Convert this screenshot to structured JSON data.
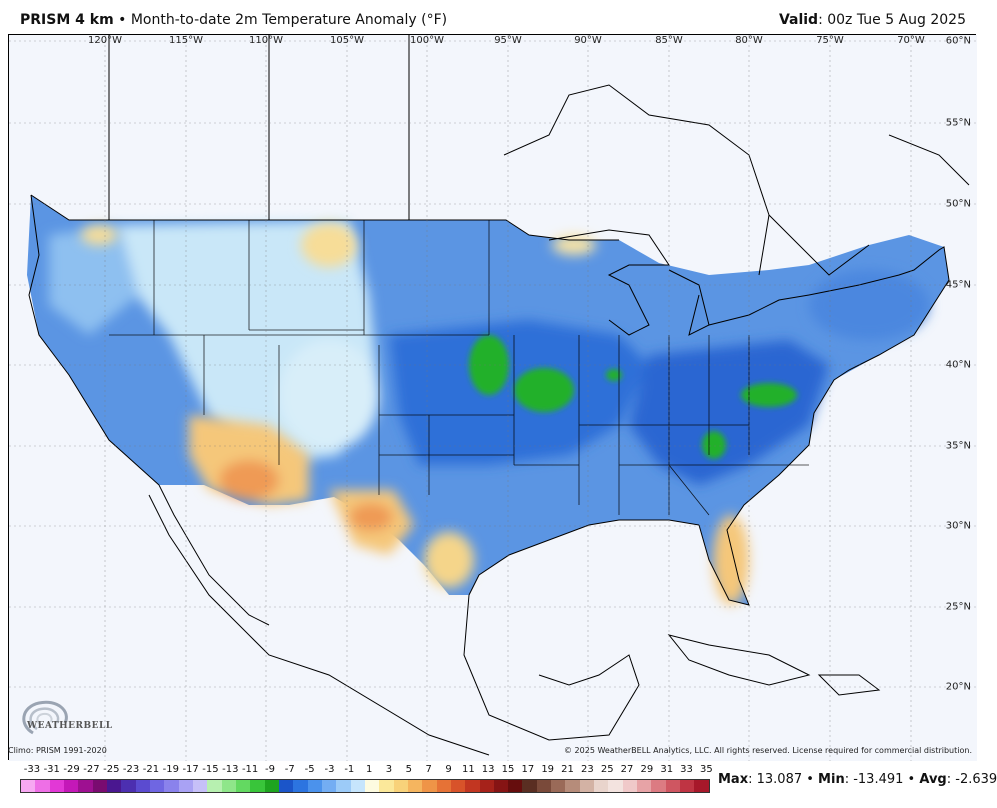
{
  "header": {
    "model": "PRISM 4 km",
    "bullet": "•",
    "description": "Month-to-date 2m Temperature Anomaly (°F)",
    "valid_label": "Valid",
    "valid_value": ": 00z Tue 5 Aug 2025"
  },
  "map": {
    "longitude_labels": [
      "120°W",
      "115°W",
      "110°W",
      "105°W",
      "100°W",
      "95°W",
      "90°W",
      "85°W",
      "80°W",
      "75°W",
      "70°W"
    ],
    "latitude_labels": [
      "60°N",
      "55°N",
      "50°N",
      "45°N",
      "40°N",
      "35°N",
      "30°N",
      "25°N",
      "20°N"
    ],
    "logo_text": "WEATHERBELL",
    "colors": {
      "ocean": "#f3f6fc",
      "cool_dominant": "#4c87df",
      "deep_cool": "#1f5fcf",
      "green_anomaly": "#22b02c",
      "warm_southwest": "#f5c77a",
      "warm_core": "#ef9a54",
      "neutral_west": "#c9e7f8"
    }
  },
  "footer": {
    "climo": "Climo: PRISM 1991-2020",
    "copyright": "© 2025 WeatherBELL Analytics, LLC. All rights reserved. License required for commercial distribution."
  },
  "scale": {
    "ticks": [
      "-33",
      "-31",
      "-29",
      "-27",
      "-25",
      "-23",
      "-21",
      "-19",
      "-17",
      "-15",
      "-13",
      "-11",
      "-9",
      "-7",
      "-5",
      "-3",
      "-1",
      "1",
      "3",
      "5",
      "7",
      "9",
      "11",
      "13",
      "15",
      "17",
      "19",
      "21",
      "23",
      "25",
      "27",
      "29",
      "31",
      "33",
      "35"
    ],
    "colors": [
      "#f7a8f2",
      "#ee6fe6",
      "#e238d6",
      "#c418b8",
      "#9e1091",
      "#7a0b70",
      "#4a1790",
      "#4c2fb0",
      "#5b4bd0",
      "#6f66e2",
      "#8a82ec",
      "#a9a2f4",
      "#c6c0f8",
      "#b7f0b0",
      "#8fe68a",
      "#63d961",
      "#39c53a",
      "#1ea41f",
      "#1b55c9",
      "#2c74e0",
      "#4b92ec",
      "#73adf3",
      "#9ccbf8",
      "#c6e5fc",
      "#fdfbe0",
      "#fbe89a",
      "#f8d27a",
      "#f5b55f",
      "#ef9447",
      "#e67236",
      "#d8532a",
      "#c23621",
      "#a6221a",
      "#861414",
      "#660d0d",
      "#5a2e22",
      "#7a4a3a",
      "#9a6a58",
      "#b68c7a",
      "#d3b2a4",
      "#e9d4cc",
      "#f3e3df",
      "#f0c9c9",
      "#e7a3a6",
      "#dc7b82",
      "#cf5661",
      "#bf3443",
      "#a7182a"
    ]
  },
  "stats": {
    "max_label": "Max",
    "max_value": ": 13.087",
    "sep1": " • ",
    "min_label": "Min",
    "min_value": ": -13.491",
    "sep2": " • ",
    "avg_label": "Avg",
    "avg_value": ": -2.639"
  }
}
